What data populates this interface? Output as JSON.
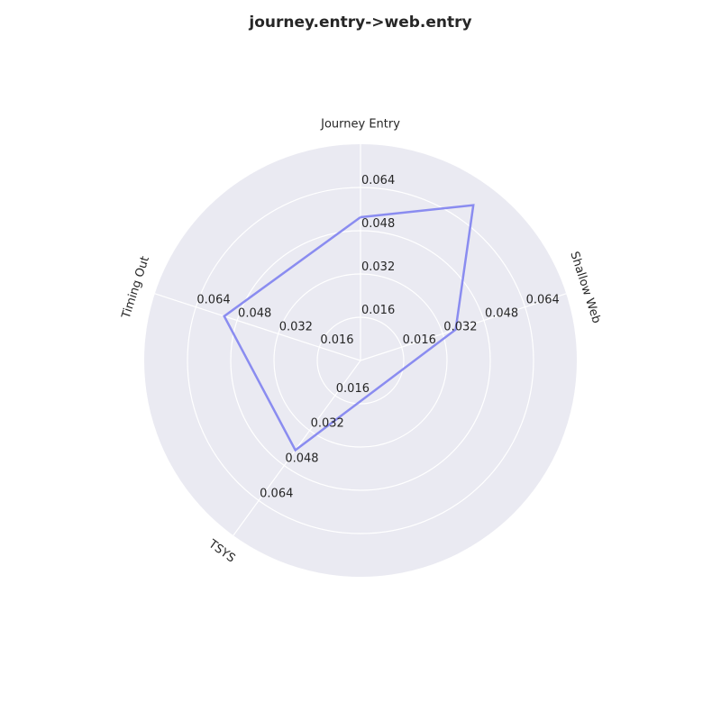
{
  "chart_data": {
    "type": "radar",
    "title": "journey.entry->web.entry",
    "axes": [
      "Journey Entry",
      "Shallow Web",
      "TSYS",
      "Timing Out"
    ],
    "rlim": [
      0,
      0.08
    ],
    "rticks": [
      0.016,
      0.032,
      0.048,
      0.064
    ],
    "rtick_labels": [
      "0.016",
      "0.032",
      "0.048",
      "0.064"
    ],
    "grid": true,
    "series": [
      {
        "values": [
          0.053,
          0.071,
          0.037,
          0.041,
          0.053
        ],
        "axis_index": [
          0,
          0.5,
          1,
          2,
          3
        ],
        "color": "#8a8cf0"
      }
    ],
    "colors": {
      "background": "#eaeaf2",
      "grid": "#ffffff",
      "line": "#8a8cf0"
    }
  }
}
